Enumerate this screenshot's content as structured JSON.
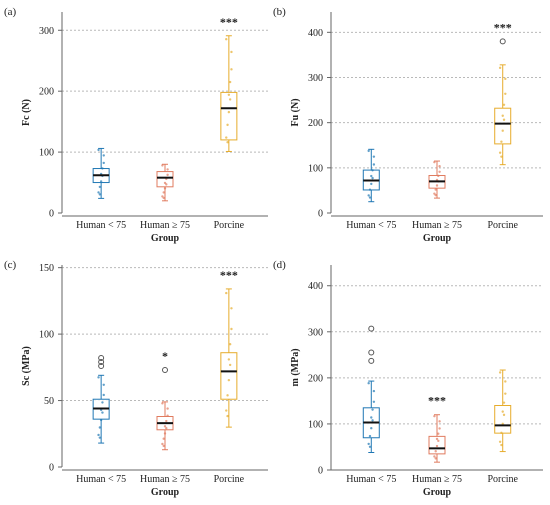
{
  "colors": {
    "human_lt": "#1f77b4",
    "human_ge": "#e07b5f",
    "porcine": "#e6ac2c",
    "grid": "#b9b9b9",
    "axis": "#666666"
  },
  "chart_data": [
    {
      "type": "box",
      "panel_label": "(a)",
      "ylabel": "Fc (N)",
      "xlabel": "Group",
      "ylim": [
        0,
        330
      ],
      "yticks": [
        0,
        100,
        200,
        300
      ],
      "grid": "horizontal dotted",
      "categories": [
        "Human < 75",
        "Human ≥ 75",
        "Porcine"
      ],
      "series": [
        {
          "q1": 50,
          "median": 62,
          "q3": 73,
          "whisker_low": 24,
          "whisker_high": 106,
          "outliers": [],
          "significance": ""
        },
        {
          "q1": 43,
          "median": 58,
          "q3": 68,
          "whisker_low": 20,
          "whisker_high": 80,
          "outliers": [],
          "significance": ""
        },
        {
          "q1": 120,
          "median": 172,
          "q3": 198,
          "whisker_low": 101,
          "whisker_high": 291,
          "outliers": [],
          "significance": "***"
        }
      ]
    },
    {
      "type": "box",
      "panel_label": "(b)",
      "ylabel": "Fu (N)",
      "xlabel": "Group",
      "ylim": [
        0,
        445
      ],
      "yticks": [
        0,
        100,
        200,
        300,
        400
      ],
      "grid": "horizontal dotted",
      "categories": [
        "Human < 75",
        "Human ≥ 75",
        "Porcine"
      ],
      "series": [
        {
          "q1": 51,
          "median": 72,
          "q3": 95,
          "whisker_low": 25,
          "whisker_high": 141,
          "outliers": [],
          "significance": ""
        },
        {
          "q1": 55,
          "median": 70,
          "q3": 83,
          "whisker_low": 33,
          "whisker_high": 115,
          "outliers": [],
          "significance": ""
        },
        {
          "q1": 153,
          "median": 198,
          "q3": 232,
          "whisker_low": 107,
          "whisker_high": 328,
          "outliers": [
            380
          ],
          "significance": "***"
        }
      ]
    },
    {
      "type": "box",
      "panel_label": "(c)",
      "ylabel": "Sc (MPa)",
      "xlabel": "Group",
      "ylim": [
        0,
        152
      ],
      "yticks": [
        0,
        50,
        100,
        150
      ],
      "grid": "horizontal dotted",
      "categories": [
        "Human < 75",
        "Human ≥ 75",
        "Porcine"
      ],
      "series": [
        {
          "q1": 36,
          "median": 44,
          "q3": 51,
          "whisker_low": 18,
          "whisker_high": 69,
          "outliers": [
            76,
            79,
            82
          ],
          "significance": ""
        },
        {
          "q1": 28,
          "median": 33,
          "q3": 38,
          "whisker_low": 13,
          "whisker_high": 49,
          "outliers": [
            73
          ],
          "significance": "*"
        },
        {
          "q1": 51,
          "median": 72,
          "q3": 86,
          "whisker_low": 30,
          "whisker_high": 134,
          "outliers": [],
          "significance": "***"
        }
      ]
    },
    {
      "type": "box",
      "panel_label": "(d)",
      "ylabel": "m (MPa)",
      "xlabel": "Group",
      "ylim": [
        0,
        445
      ],
      "yticks": [
        0,
        100,
        200,
        300,
        400
      ],
      "grid": "horizontal dotted",
      "categories": [
        "Human < 75",
        "Human ≥ 75",
        "Porcine"
      ],
      "series": [
        {
          "q1": 70,
          "median": 103,
          "q3": 135,
          "whisker_low": 38,
          "whisker_high": 193,
          "outliers": [
            237,
            255,
            307
          ],
          "significance": ""
        },
        {
          "q1": 35,
          "median": 47,
          "q3": 73,
          "whisker_low": 17,
          "whisker_high": 120,
          "outliers": [],
          "significance": "***"
        },
        {
          "q1": 80,
          "median": 97,
          "q3": 140,
          "whisker_low": 40,
          "whisker_high": 217,
          "outliers": [],
          "significance": ""
        }
      ]
    }
  ]
}
